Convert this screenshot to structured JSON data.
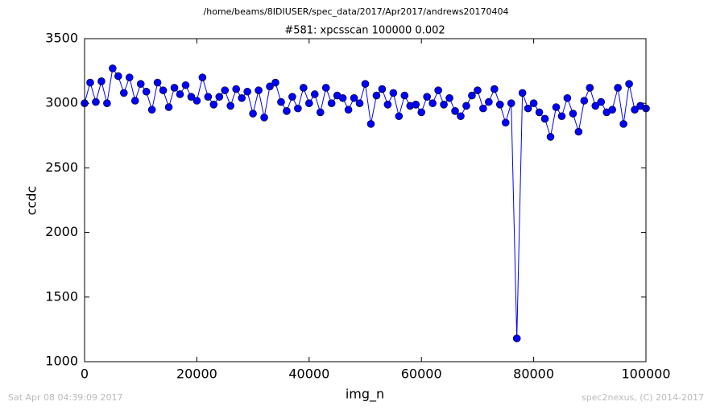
{
  "chart_data": {
    "type": "line",
    "suptitle": "/home/beams/8IDIUSER/spec_data/2017/Apr2017/andrews20170404",
    "title": "#581: xpcsscan 100000 0.002",
    "x_label": "img_n",
    "y_label": "ccdc",
    "footer_left": "Sat Apr 08 04:39:09 2017",
    "footer_right": "spec2nexus, (C) 2014-2017",
    "x": [
      0,
      1000,
      2000,
      3000,
      4000,
      5000,
      6000,
      7000,
      8000,
      9000,
      10000,
      11000,
      12000,
      13000,
      14000,
      15000,
      16000,
      17000,
      18000,
      19000,
      20000,
      21000,
      22000,
      23000,
      24000,
      25000,
      26000,
      27000,
      28000,
      29000,
      30000,
      31000,
      32000,
      33000,
      34000,
      35000,
      36000,
      37000,
      38000,
      39000,
      40000,
      41000,
      42000,
      43000,
      44000,
      45000,
      46000,
      47000,
      48000,
      49000,
      50000,
      51000,
      52000,
      53000,
      54000,
      55000,
      56000,
      57000,
      58000,
      59000,
      60000,
      61000,
      62000,
      63000,
      64000,
      65000,
      66000,
      67000,
      68000,
      69000,
      70000,
      71000,
      72000,
      73000,
      74000,
      75000,
      76000,
      77000,
      78000,
      79000,
      80000,
      81000,
      82000,
      83000,
      84000,
      85000,
      86000,
      87000,
      88000,
      89000,
      90000,
      91000,
      92000,
      93000,
      94000,
      95000,
      96000,
      97000,
      98000,
      99000,
      100000
    ],
    "series": [
      {
        "name": "ccdc",
        "color": "#0000ff",
        "values": [
          3000,
          3160,
          3010,
          3170,
          3000,
          3270,
          3210,
          3080,
          3200,
          3020,
          3150,
          3090,
          2950,
          3160,
          3100,
          2970,
          3120,
          3070,
          3140,
          3050,
          3020,
          3200,
          3050,
          2990,
          3050,
          3100,
          2980,
          3110,
          3040,
          3090,
          2920,
          3100,
          2890,
          3130,
          3160,
          3010,
          2940,
          3050,
          2960,
          3120,
          3000,
          3070,
          2930,
          3120,
          3000,
          3060,
          3040,
          2950,
          3040,
          3000,
          3150,
          2840,
          3060,
          3110,
          2990,
          3080,
          2900,
          3060,
          2980,
          2990,
          2930,
          3050,
          3000,
          3100,
          2990,
          3040,
          2940,
          2900,
          2980,
          3060,
          3100,
          2960,
          3010,
          3110,
          2990,
          2850,
          3000,
          1180,
          3080,
          2960,
          3000,
          2930,
          2880,
          2740,
          2970,
          2900,
          3040,
          2920,
          2780,
          3020,
          3120,
          2980,
          3010,
          2930,
          2950,
          3120,
          2840,
          3150,
          2950,
          2980,
          2960
        ]
      }
    ],
    "xlim": [
      0,
      100000
    ],
    "ylim": [
      1000,
      3500
    ],
    "xticks": [
      0,
      20000,
      40000,
      60000,
      80000,
      100000
    ],
    "yticks": [
      1000,
      1500,
      2000,
      2500,
      3000,
      3500
    ],
    "grid": false
  }
}
